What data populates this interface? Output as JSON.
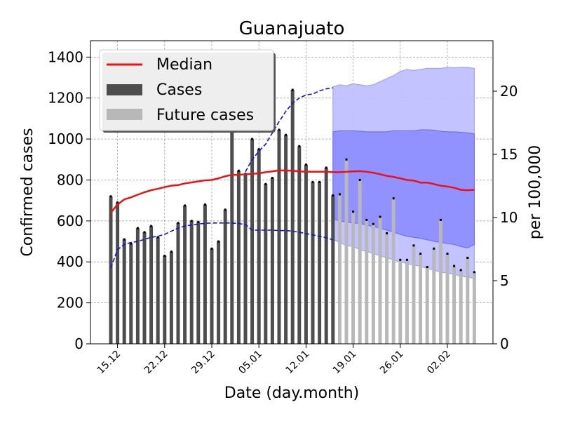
{
  "chart_data": {
    "type": "bar",
    "title": "Guanajuato",
    "xlabel": "Date (day.month)",
    "ylabel": "Confirmed cases",
    "ylabel_right": "per 100,000",
    "ylim": [
      0,
      1480
    ],
    "ylim_right": [
      0,
      24.0
    ],
    "yticks": [
      0,
      200,
      400,
      600,
      800,
      1000,
      1200,
      1400
    ],
    "yticks_right": [
      0,
      5,
      10,
      15,
      20
    ],
    "x_ticks": [
      {
        "day": 1,
        "label": "15.12"
      },
      {
        "day": 8,
        "label": "22.12"
      },
      {
        "day": 15,
        "label": "29.12"
      },
      {
        "day": 22,
        "label": "05.01"
      },
      {
        "day": 29,
        "label": "12.01"
      },
      {
        "day": 36,
        "label": "19.01"
      },
      {
        "day": 43,
        "label": "26.01"
      },
      {
        "day": 50,
        "label": "02.02"
      }
    ],
    "grid": true,
    "legend_position": "top-left",
    "legend": {
      "median": "Median",
      "cases": "Cases",
      "future": "Future cases"
    },
    "colors": {
      "cases": "#4d4d4d",
      "future": "#b8b8b8",
      "median": "#ee1111",
      "band_dash": "#1111dd",
      "band_inner": "#8888ff",
      "band_outer": "#c0c0ff"
    },
    "series": [
      {
        "name": "Cases",
        "x": [
          0,
          1,
          2,
          3,
          4,
          5,
          6,
          7,
          8,
          9,
          10,
          11,
          12,
          13,
          14,
          15,
          16,
          17,
          18,
          19,
          20,
          21,
          22,
          23,
          24,
          25,
          26,
          27,
          28,
          29,
          30,
          31,
          32,
          33
        ],
        "values": [
          720,
          690,
          510,
          490,
          565,
          545,
          575,
          520,
          430,
          450,
          590,
          675,
          600,
          595,
          680,
          465,
          500,
          655,
          1230,
          845,
          830,
          1000,
          950,
          780,
          810,
          1045,
          1020,
          1240,
          965,
          875,
          790,
          790,
          860,
          725
        ]
      },
      {
        "name": "Future cases",
        "x": [
          34,
          35,
          36,
          37,
          38,
          39,
          40,
          41,
          42,
          43,
          44,
          45,
          46,
          47,
          48,
          49,
          50,
          51,
          52,
          53,
          54
        ],
        "values": [
          730,
          900,
          645,
          800,
          605,
          585,
          620,
          540,
          710,
          410,
          410,
          480,
          440,
          375,
          465,
          605,
          440,
          380,
          360,
          420,
          350
        ]
      }
    ],
    "median_line": {
      "x": [
        0,
        1,
        2,
        3,
        4,
        5,
        6,
        7,
        8,
        9,
        10,
        11,
        12,
        13,
        14,
        15,
        16,
        17,
        18,
        19,
        20,
        21,
        22,
        23,
        24,
        25,
        26,
        27,
        28,
        29,
        30,
        31,
        32,
        33,
        34,
        35,
        36,
        37,
        38,
        39,
        40,
        41,
        42,
        43,
        44,
        45,
        46,
        47,
        48,
        49,
        50,
        51,
        52,
        53,
        54
      ],
      "values": [
        640,
        680,
        705,
        715,
        728,
        740,
        750,
        757,
        765,
        772,
        775,
        783,
        788,
        793,
        798,
        800,
        808,
        818,
        825,
        825,
        828,
        830,
        832,
        838,
        842,
        847,
        846,
        845,
        842,
        840,
        840,
        840,
        840,
        838,
        838,
        840,
        842,
        843,
        840,
        835,
        828,
        820,
        815,
        808,
        800,
        797,
        787,
        787,
        780,
        772,
        768,
        762,
        752,
        750,
        752
      ]
    },
    "lower_dashed": {
      "x": [
        0,
        1,
        2,
        3,
        4,
        5,
        6,
        7,
        8,
        9,
        10,
        11,
        12,
        13,
        14,
        15,
        16,
        17,
        18,
        19,
        20,
        21,
        22,
        23,
        24,
        25,
        26,
        27,
        28,
        29,
        30,
        31,
        32,
        33
      ],
      "values": [
        370,
        460,
        485,
        495,
        500,
        510,
        520,
        525,
        535,
        550,
        565,
        575,
        580,
        585,
        588,
        590,
        590,
        590,
        590,
        587,
        583,
        555,
        555,
        555,
        555,
        553,
        553,
        550,
        545,
        538,
        532,
        525,
        518,
        508
      ]
    },
    "upper_dashed": {
      "x": [
        20,
        21,
        22,
        23,
        24,
        25,
        26,
        27,
        28,
        29,
        30,
        31,
        32,
        33
      ],
      "values": [
        840,
        900,
        940,
        975,
        1030,
        1085,
        1135,
        1175,
        1200,
        1215,
        1220,
        1235,
        1245,
        1250
      ]
    },
    "outer_band": {
      "x": [
        33,
        34,
        35,
        36,
        37,
        38,
        39,
        40,
        41,
        42,
        43,
        44,
        45,
        46,
        47,
        48,
        49,
        50,
        51,
        52,
        53,
        54
      ],
      "upper": [
        1255,
        1265,
        1260,
        1270,
        1265,
        1260,
        1265,
        1280,
        1295,
        1310,
        1330,
        1340,
        1335,
        1340,
        1345,
        1345,
        1345,
        1350,
        1348,
        1350,
        1350,
        1345
      ],
      "lower": [
        510,
        495,
        480,
        475,
        460,
        450,
        440,
        430,
        420,
        410,
        400,
        392,
        385,
        378,
        368,
        360,
        350,
        345,
        340,
        330,
        325,
        320
      ]
    },
    "inner_band": {
      "x": [
        33,
        34,
        35,
        36,
        37,
        38,
        39,
        40,
        41,
        42,
        43,
        44,
        45,
        46,
        47,
        48,
        49,
        50,
        51,
        52,
        53,
        54
      ],
      "upper": [
        1035,
        1040,
        1040,
        1040,
        1038,
        1035,
        1035,
        1035,
        1035,
        1040,
        1040,
        1040,
        1040,
        1045,
        1045,
        1043,
        1038,
        1035,
        1035,
        1033,
        1030,
        1025
      ],
      "lower": [
        610,
        600,
        595,
        590,
        588,
        580,
        572,
        565,
        555,
        545,
        535,
        525,
        520,
        515,
        508,
        500,
        495,
        490,
        485,
        475,
        468,
        485
      ]
    }
  }
}
